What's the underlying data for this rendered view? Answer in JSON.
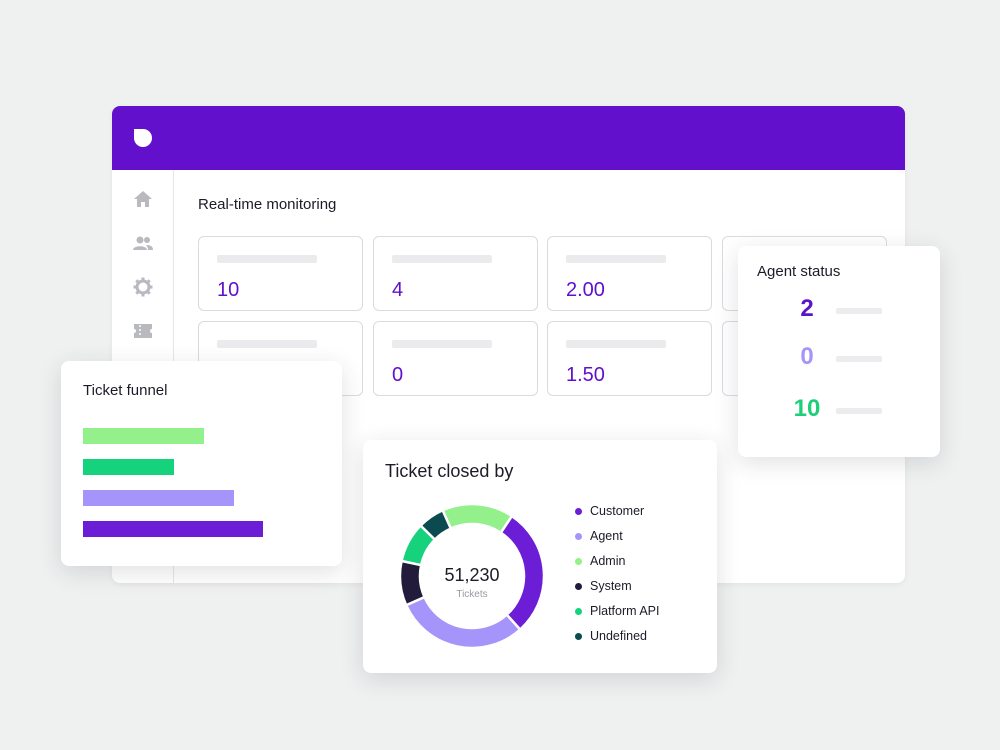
{
  "header": {
    "logo_icon": "app-logo",
    "color": "#6210cc"
  },
  "sidebar": {
    "items": [
      {
        "icon": "home-icon"
      },
      {
        "icon": "users-icon"
      },
      {
        "icon": "gear-icon"
      },
      {
        "icon": "ticket-icon"
      }
    ]
  },
  "monitoring": {
    "title": "Real-time monitoring",
    "tiles": [
      {
        "value": "10"
      },
      {
        "value": "4"
      },
      {
        "value": "2.00"
      },
      {
        "value": ""
      },
      {
        "value": "0"
      },
      {
        "value": "1.50"
      }
    ]
  },
  "agent_status": {
    "title": "Agent status",
    "rows": [
      {
        "value": "2",
        "color": "#5b14c8"
      },
      {
        "value": "0",
        "color": "#a594f9"
      },
      {
        "value": "10",
        "color": "#1fcf78"
      }
    ]
  },
  "ticket_funnel": {
    "title": "Ticket funnel"
  },
  "ticket_closed_by": {
    "title": "Ticket closed by",
    "total_value": "51,230",
    "total_label": "Tickets",
    "legend": [
      {
        "label": "Customer",
        "color": "#6b1ed6"
      },
      {
        "label": "Agent",
        "color": "#a594f9"
      },
      {
        "label": "Admin",
        "color": "#93f08a"
      },
      {
        "label": "System",
        "color": "#221b3a"
      },
      {
        "label": "Platform API",
        "color": "#17d27c"
      },
      {
        "label": "Undefined",
        "color": "#0b4a4f"
      }
    ]
  },
  "chart_data": [
    {
      "type": "bar",
      "orientation": "horizontal",
      "title": "Ticket funnel",
      "categories": [
        "",
        "",
        "",
        ""
      ],
      "values": [
        121,
        91,
        151,
        180
      ],
      "colors": [
        "#93f08a",
        "#17d27c",
        "#a594f9",
        "#6b1ed6"
      ]
    },
    {
      "type": "pie",
      "donut": true,
      "title": "Ticket closed by",
      "labels": [
        "Admin",
        "Customer",
        "Agent",
        "System",
        "Platform API",
        "Undefined"
      ],
      "values": [
        16,
        29,
        30,
        10,
        9,
        6
      ],
      "colors": [
        "#93f08a",
        "#6b1ed6",
        "#a594f9",
        "#221b3a",
        "#17d27c",
        "#0b4a4f"
      ],
      "center_value": "51,230",
      "center_label": "Tickets"
    }
  ]
}
